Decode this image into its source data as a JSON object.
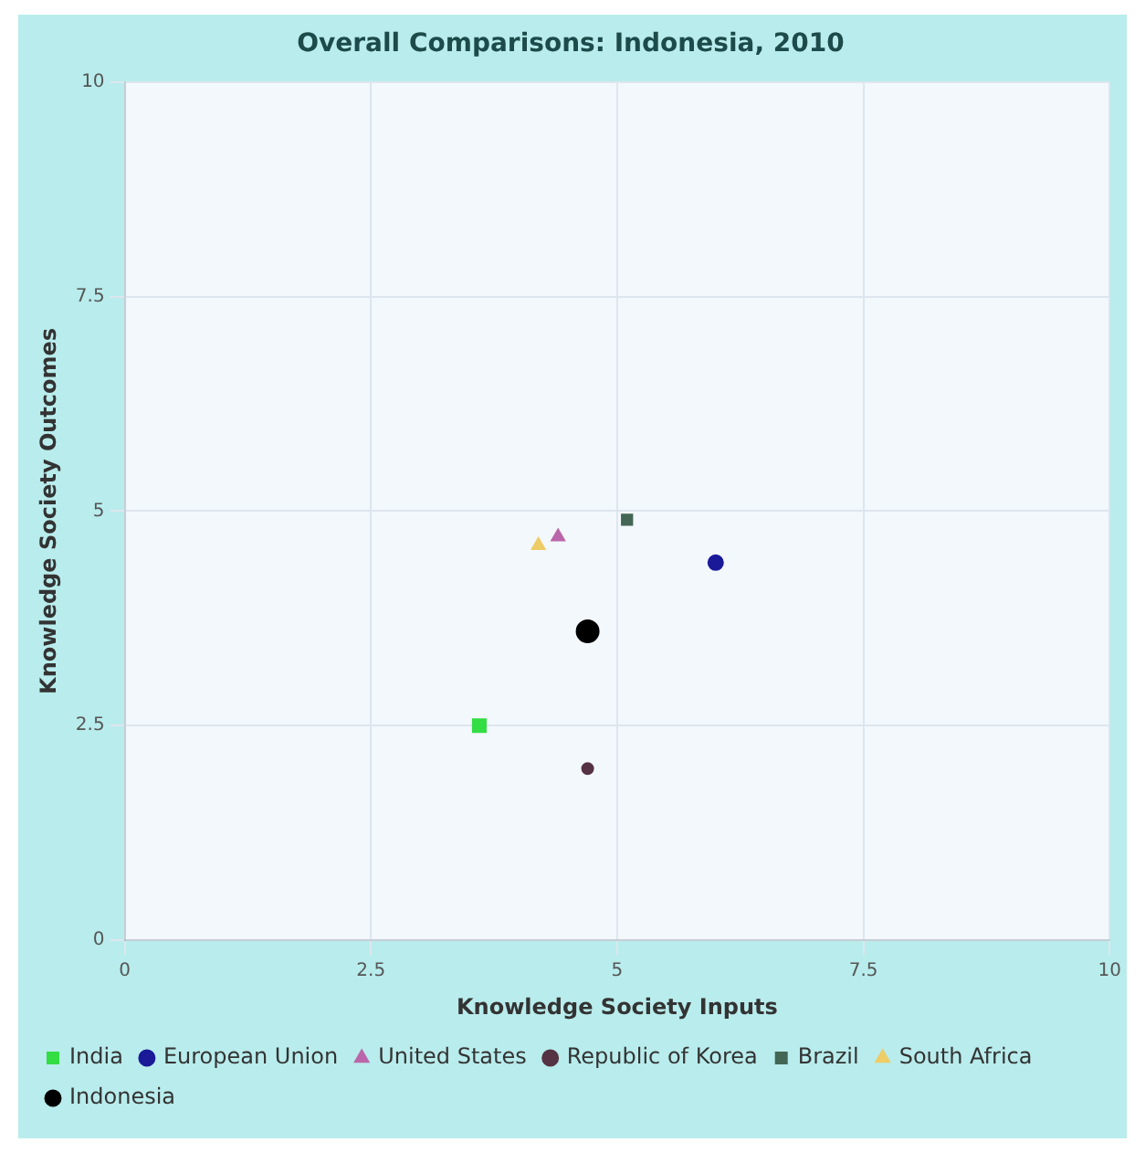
{
  "chart_data": {
    "type": "scatter",
    "title": "Overall Comparisons: Indonesia, 2010",
    "xlabel": "Knowledge Society Inputs",
    "ylabel": "Knowledge Society Outcomes",
    "xlim": [
      0,
      10
    ],
    "xticks": [
      0,
      2.5,
      5,
      7.5,
      10
    ],
    "ylim": [
      0,
      10
    ],
    "yticks": [
      0,
      2.5,
      5,
      7.5,
      10
    ],
    "grid": true,
    "legend": "bottom",
    "series": [
      {
        "name": "India",
        "color": "#33dd44",
        "x": [
          3.6
        ],
        "values": [
          2.5
        ],
        "marker": "square"
      },
      {
        "name": "European Union",
        "color": "#1a1a99",
        "x": [
          6.0
        ],
        "values": [
          4.4
        ],
        "marker": "circle"
      },
      {
        "name": "United States",
        "color": "#bb66aa",
        "x": [
          4.4
        ],
        "values": [
          4.7
        ],
        "marker": "triangle"
      },
      {
        "name": "Republic of Korea",
        "color": "#553344",
        "x": [
          4.7
        ],
        "values": [
          2.0
        ],
        "marker": "circle"
      },
      {
        "name": "Brazil",
        "color": "#446655",
        "x": [
          5.1
        ],
        "values": [
          4.9
        ],
        "marker": "square"
      },
      {
        "name": "South Africa",
        "color": "#eecc66",
        "x": [
          4.2
        ],
        "values": [
          4.6
        ],
        "marker": "triangle"
      },
      {
        "name": "Indonesia",
        "color": "#000000",
        "x": [
          4.7
        ],
        "values": [
          3.6
        ],
        "marker": "circle"
      }
    ]
  }
}
